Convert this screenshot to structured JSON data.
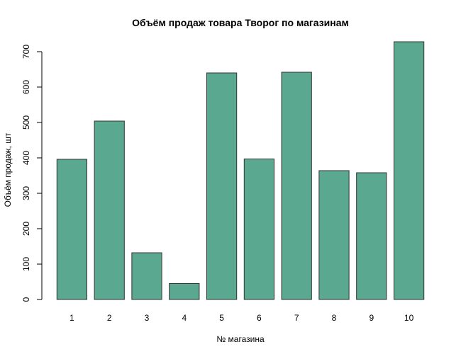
{
  "chart_data": {
    "type": "bar",
    "title": "Объём продаж товара Творог по магазинам",
    "xlabel": "№ магазина",
    "ylabel": "Объём продаж, шт",
    "categories": [
      "1",
      "2",
      "3",
      "4",
      "5",
      "6",
      "7",
      "8",
      "9",
      "10"
    ],
    "values": [
      396,
      504,
      132,
      45,
      640,
      397,
      642,
      364,
      358,
      728
    ],
    "yticks": [
      0,
      100,
      200,
      300,
      400,
      500,
      600,
      700
    ],
    "ylim": [
      0,
      728
    ],
    "grid": false,
    "legend": "none",
    "bar_color": "#5aa890",
    "border_color": "#333333"
  }
}
